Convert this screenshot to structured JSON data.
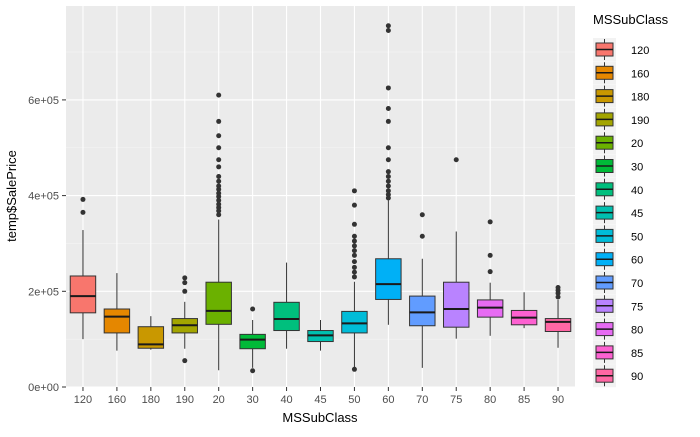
{
  "chart_data": {
    "type": "boxplot",
    "xlabel": "MSSubClass",
    "ylabel": "temp$SalePrice",
    "ylim": [
      0,
      770000
    ],
    "yticks": [
      0,
      200000,
      400000,
      600000
    ],
    "ytick_labels": [
      "0e+00",
      "2e+05",
      "4e+05",
      "6e+05"
    ],
    "legend": {
      "title": "MSSubClass",
      "position": "right"
    },
    "panel_background": "#ebebeb",
    "grid": true,
    "categories": [
      "120",
      "160",
      "180",
      "190",
      "20",
      "30",
      "40",
      "45",
      "50",
      "60",
      "70",
      "75",
      "80",
      "85",
      "90"
    ],
    "colors": [
      "#F8766D",
      "#E58700",
      "#C99800",
      "#A3A500",
      "#6BB100",
      "#00BA38",
      "#00BF7D",
      "#00C0AF",
      "#00BCD8",
      "#00B0F6",
      "#619CFF",
      "#B983FF",
      "#E76BF3",
      "#FD61D1",
      "#FF67A4"
    ],
    "boxes": [
      {
        "category": "120",
        "whisker_low": 100000,
        "q1": 155000,
        "median": 190000,
        "q3": 232000,
        "whisker_high": 328000,
        "outliers": [
          365000,
          392000
        ]
      },
      {
        "category": "160",
        "whisker_low": 76000,
        "q1": 113000,
        "median": 147000,
        "q3": 163000,
        "whisker_high": 238000,
        "outliers": []
      },
      {
        "category": "180",
        "whisker_low": 78000,
        "q1": 81000,
        "median": 89000,
        "q3": 126000,
        "whisker_high": 148000,
        "outliers": []
      },
      {
        "category": "190",
        "whisker_low": 80000,
        "q1": 113000,
        "median": 129000,
        "q3": 143000,
        "whisker_high": 178000,
        "outliers": [
          55000,
          200000,
          218000,
          228000
        ]
      },
      {
        "category": "20",
        "whisker_low": 35000,
        "q1": 131000,
        "median": 159000,
        "q3": 219000,
        "whisker_high": 350000,
        "outliers": [
          360000,
          368000,
          375000,
          382000,
          390000,
          398000,
          405000,
          413000,
          420000,
          430000,
          440000,
          460000,
          475000,
          500000,
          525000,
          555000,
          610000
        ]
      },
      {
        "category": "30",
        "whisker_low": 40000,
        "q1": 80000,
        "median": 99000,
        "q3": 110000,
        "whisker_high": 140000,
        "outliers": [
          34000,
          163000
        ]
      },
      {
        "category": "40",
        "whisker_low": 80000,
        "q1": 118000,
        "median": 142000,
        "q3": 177000,
        "whisker_high": 260000,
        "outliers": []
      },
      {
        "category": "45",
        "whisker_low": 76000,
        "q1": 95000,
        "median": 108000,
        "q3": 118000,
        "whisker_high": 140000,
        "outliers": []
      },
      {
        "category": "50",
        "whisker_low": 40000,
        "q1": 113000,
        "median": 133000,
        "q3": 158000,
        "whisker_high": 220000,
        "outliers": [
          37000,
          230000,
          240000,
          250000,
          262000,
          275000,
          285000,
          295000,
          305000,
          315000,
          340000,
          380000,
          410000
        ]
      },
      {
        "category": "60",
        "whisker_low": 130000,
        "q1": 183000,
        "median": 215000,
        "q3": 268000,
        "whisker_high": 390000,
        "outliers": [
          395000,
          402000,
          410000,
          420000,
          430000,
          440000,
          450000,
          475000,
          500000,
          555000,
          582000,
          625000,
          745000,
          755000
        ]
      },
      {
        "category": "70",
        "whisker_low": 40000,
        "q1": 128000,
        "median": 156000,
        "q3": 190000,
        "whisker_high": 268000,
        "outliers": [
          315000,
          360000
        ]
      },
      {
        "category": "75",
        "whisker_low": 101000,
        "q1": 125000,
        "median": 163000,
        "q3": 219000,
        "whisker_high": 325000,
        "outliers": [
          475000
        ]
      },
      {
        "category": "80",
        "whisker_low": 107000,
        "q1": 146000,
        "median": 166000,
        "q3": 182000,
        "whisker_high": 218000,
        "outliers": [
          241000,
          275000,
          345000
        ]
      },
      {
        "category": "85",
        "whisker_low": 123000,
        "q1": 130000,
        "median": 145000,
        "q3": 160000,
        "whisker_high": 198000,
        "outliers": []
      },
      {
        "category": "90",
        "whisker_low": 82000,
        "q1": 116000,
        "median": 136000,
        "q3": 143000,
        "whisker_high": 182000,
        "outliers": [
          188000,
          196000,
          202000,
          208000
        ]
      }
    ]
  }
}
